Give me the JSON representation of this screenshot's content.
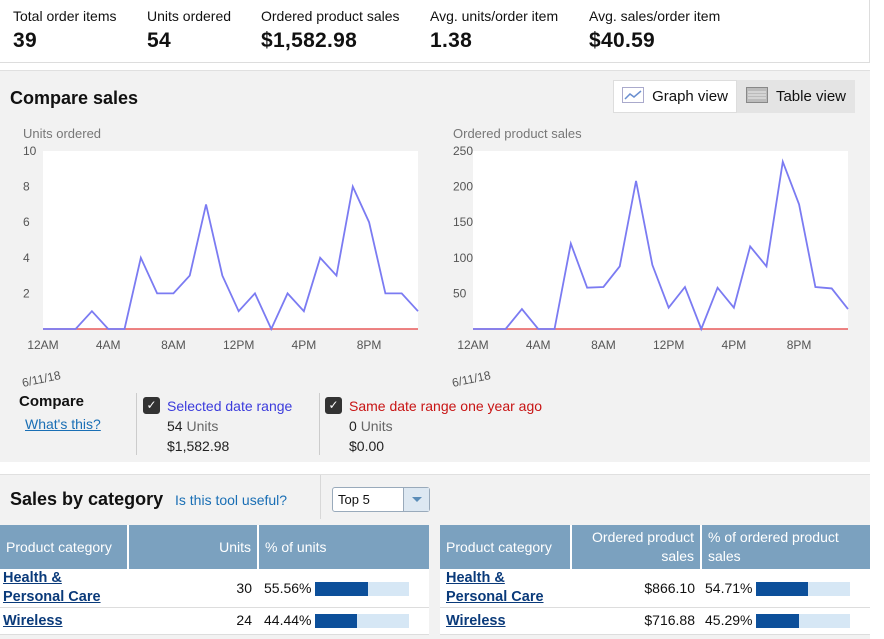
{
  "kpis": [
    {
      "label": "Total order items",
      "value": "39"
    },
    {
      "label": "Units ordered",
      "value": "54"
    },
    {
      "label": "Ordered product sales",
      "value": "$1,582.98"
    },
    {
      "label": "Avg. units/order item",
      "value": "1.38"
    },
    {
      "label": "Avg. sales/order item",
      "value": "$40.59"
    }
  ],
  "compare": {
    "title": "Compare sales",
    "graph_view_label": "Graph view",
    "table_view_label": "Table view",
    "compare_label": "Compare",
    "whats_this": "What's this?",
    "selected": {
      "label": "Selected date range",
      "units_value": "54",
      "units_word": "Units",
      "sales": "$1,582.98"
    },
    "last_year": {
      "label": "Same date range one year ago",
      "units_value": "0",
      "units_word": "Units",
      "sales": "$0.00"
    }
  },
  "chart_data": [
    {
      "type": "line",
      "title": "Units ordered",
      "date_label": "6/11/18",
      "x": [
        "12AM",
        "1AM",
        "2AM",
        "3AM",
        "4AM",
        "5AM",
        "6AM",
        "7AM",
        "8AM",
        "9AM",
        "10AM",
        "11AM",
        "12PM",
        "1PM",
        "2PM",
        "3PM",
        "4PM",
        "5PM",
        "6PM",
        "7PM",
        "8PM",
        "9PM",
        "10PM",
        "11PM"
      ],
      "x_tick_labels": [
        "12AM",
        "4AM",
        "8AM",
        "12PM",
        "4PM",
        "8PM"
      ],
      "y_tick_labels": [
        "2",
        "4",
        "6",
        "8",
        "10"
      ],
      "ylim": [
        0,
        10
      ],
      "series": [
        {
          "values": [
            0,
            0,
            0,
            1,
            0,
            0,
            4,
            2,
            2,
            3,
            7,
            3,
            1,
            2,
            0,
            2,
            1,
            4,
            3,
            8,
            6,
            2,
            2,
            1
          ],
          "color": "#7b7bf2"
        },
        {
          "values": [
            0,
            0,
            0,
            0,
            0,
            0,
            0,
            0,
            0,
            0,
            0,
            0,
            0,
            0,
            0,
            0,
            0,
            0,
            0,
            0,
            0,
            0,
            0,
            0
          ],
          "color": "#e85a5a"
        }
      ]
    },
    {
      "type": "line",
      "title": "Ordered product sales",
      "date_label": "6/11/18",
      "x": [
        "12AM",
        "1AM",
        "2AM",
        "3AM",
        "4AM",
        "5AM",
        "6AM",
        "7AM",
        "8AM",
        "9AM",
        "10AM",
        "11AM",
        "12PM",
        "1PM",
        "2PM",
        "3PM",
        "4PM",
        "5PM",
        "6PM",
        "7PM",
        "8PM",
        "9PM",
        "10PM",
        "11PM"
      ],
      "x_tick_labels": [
        "12AM",
        "4AM",
        "8AM",
        "12PM",
        "4PM",
        "8PM"
      ],
      "y_tick_labels": [
        "50",
        "100",
        "150",
        "200",
        "250"
      ],
      "ylim": [
        0,
        250
      ],
      "series": [
        {
          "values": [
            0,
            0,
            0,
            28,
            0,
            0,
            120,
            58,
            59,
            88,
            208,
            90,
            30,
            59,
            0,
            58,
            30,
            116,
            88,
            235,
            175,
            59,
            57,
            28
          ],
          "color": "#7b7bf2"
        },
        {
          "values": [
            0,
            0,
            0,
            0,
            0,
            0,
            0,
            0,
            0,
            0,
            0,
            0,
            0,
            0,
            0,
            0,
            0,
            0,
            0,
            0,
            0,
            0,
            0,
            0
          ],
          "color": "#e85a5a"
        }
      ]
    }
  ],
  "sales_by_category": {
    "title": "Sales by category",
    "useful_link": "Is this tool useful?",
    "select_value": "Top 5",
    "units_table": {
      "headers": [
        "Product category",
        "Units",
        "% of units"
      ],
      "rows": [
        {
          "category": "Health & Personal Care",
          "value": "30",
          "percent": "55.56%",
          "fraction": 0.5556
        },
        {
          "category": "Wireless",
          "value": "24",
          "percent": "44.44%",
          "fraction": 0.4444
        }
      ]
    },
    "sales_table": {
      "headers": [
        "Product category",
        "Ordered product sales",
        "% of ordered product sales"
      ],
      "rows": [
        {
          "category": "Health & Personal Care",
          "value": "$866.10",
          "percent": "54.71%",
          "fraction": 0.5471
        },
        {
          "category": "Wireless",
          "value": "$716.88",
          "percent": "45.29%",
          "fraction": 0.4529
        }
      ]
    }
  }
}
